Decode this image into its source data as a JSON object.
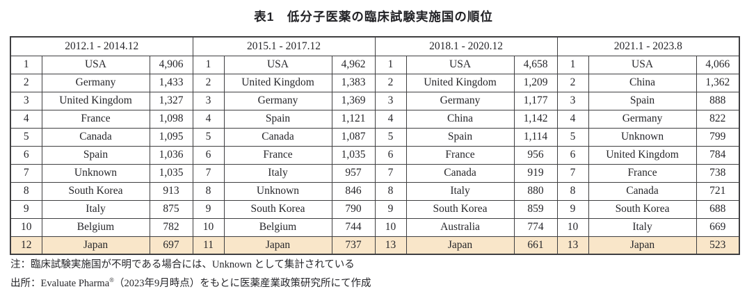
{
  "title": "表1　低分子医薬の臨床試験実施国の順位",
  "table": {
    "groups": [
      {
        "period": "2012.1 - 2014.12",
        "rows": [
          {
            "rank": "1",
            "country": "USA",
            "value": "4,906",
            "highlight": false
          },
          {
            "rank": "2",
            "country": "Germany",
            "value": "1,433",
            "highlight": false
          },
          {
            "rank": "3",
            "country": "United Kingdom",
            "value": "1,327",
            "highlight": false
          },
          {
            "rank": "4",
            "country": "France",
            "value": "1,098",
            "highlight": false
          },
          {
            "rank": "5",
            "country": "Canada",
            "value": "1,095",
            "highlight": false
          },
          {
            "rank": "6",
            "country": "Spain",
            "value": "1,036",
            "highlight": false
          },
          {
            "rank": "7",
            "country": "Unknown",
            "value": "1,035",
            "highlight": false
          },
          {
            "rank": "8",
            "country": "South Korea",
            "value": "913",
            "highlight": false
          },
          {
            "rank": "9",
            "country": "Italy",
            "value": "875",
            "highlight": false
          },
          {
            "rank": "10",
            "country": "Belgium",
            "value": "782",
            "highlight": false
          },
          {
            "rank": "12",
            "country": "Japan",
            "value": "697",
            "highlight": true
          }
        ]
      },
      {
        "period": "2015.1 - 2017.12",
        "rows": [
          {
            "rank": "1",
            "country": "USA",
            "value": "4,962",
            "highlight": false
          },
          {
            "rank": "2",
            "country": "United Kingdom",
            "value": "1,383",
            "highlight": false
          },
          {
            "rank": "3",
            "country": "Germany",
            "value": "1,369",
            "highlight": false
          },
          {
            "rank": "4",
            "country": "Spain",
            "value": "1,121",
            "highlight": false
          },
          {
            "rank": "5",
            "country": "Canada",
            "value": "1,087",
            "highlight": false
          },
          {
            "rank": "6",
            "country": "France",
            "value": "1,035",
            "highlight": false
          },
          {
            "rank": "7",
            "country": "Italy",
            "value": "957",
            "highlight": false
          },
          {
            "rank": "8",
            "country": "Unknown",
            "value": "846",
            "highlight": false
          },
          {
            "rank": "9",
            "country": "South Korea",
            "value": "790",
            "highlight": false
          },
          {
            "rank": "10",
            "country": "Belgium",
            "value": "744",
            "highlight": false
          },
          {
            "rank": "11",
            "country": "Japan",
            "value": "737",
            "highlight": true
          }
        ]
      },
      {
        "period": "2018.1 - 2020.12",
        "rows": [
          {
            "rank": "1",
            "country": "USA",
            "value": "4,658",
            "highlight": false
          },
          {
            "rank": "2",
            "country": "United Kingdom",
            "value": "1,209",
            "highlight": false
          },
          {
            "rank": "3",
            "country": "Germany",
            "value": "1,177",
            "highlight": false
          },
          {
            "rank": "4",
            "country": "China",
            "value": "1,142",
            "highlight": false
          },
          {
            "rank": "5",
            "country": "Spain",
            "value": "1,114",
            "highlight": false
          },
          {
            "rank": "6",
            "country": "France",
            "value": "956",
            "highlight": false
          },
          {
            "rank": "7",
            "country": "Canada",
            "value": "919",
            "highlight": false
          },
          {
            "rank": "8",
            "country": "Italy",
            "value": "880",
            "highlight": false
          },
          {
            "rank": "9",
            "country": "South Korea",
            "value": "859",
            "highlight": false
          },
          {
            "rank": "10",
            "country": "Australia",
            "value": "774",
            "highlight": false
          },
          {
            "rank": "13",
            "country": "Japan",
            "value": "661",
            "highlight": true
          }
        ]
      },
      {
        "period": "2021.1 - 2023.8",
        "rows": [
          {
            "rank": "1",
            "country": "USA",
            "value": "4,066",
            "highlight": false
          },
          {
            "rank": "2",
            "country": "China",
            "value": "1,362",
            "highlight": false
          },
          {
            "rank": "3",
            "country": "Spain",
            "value": "888",
            "highlight": false
          },
          {
            "rank": "4",
            "country": "Germany",
            "value": "822",
            "highlight": false
          },
          {
            "rank": "5",
            "country": "Unknown",
            "value": "799",
            "highlight": false
          },
          {
            "rank": "6",
            "country": "United Kingdom",
            "value": "784",
            "highlight": false
          },
          {
            "rank": "7",
            "country": "France",
            "value": "738",
            "highlight": false
          },
          {
            "rank": "8",
            "country": "Canada",
            "value": "721",
            "highlight": false
          },
          {
            "rank": "9",
            "country": "South Korea",
            "value": "688",
            "highlight": false
          },
          {
            "rank": "10",
            "country": "Italy",
            "value": "669",
            "highlight": false
          },
          {
            "rank": "13",
            "country": "Japan",
            "value": "523",
            "highlight": true
          }
        ]
      }
    ]
  },
  "notes": {
    "note": "注：臨床試験実施国が不明である場合には、Unknown として集計されている",
    "source_prefix": "出所：Evaluate Pharma",
    "source_sup": "®",
    "source_suffix": "（2023年9月時点）をもとに医薬産業政策研究所にて作成"
  },
  "colors": {
    "highlight_bg": "#f9e6c9",
    "border": "#3e3e40",
    "text": "#26262a"
  }
}
